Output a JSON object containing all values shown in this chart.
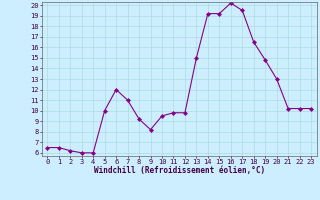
{
  "x": [
    0,
    1,
    2,
    3,
    4,
    5,
    6,
    7,
    8,
    9,
    10,
    11,
    12,
    13,
    14,
    15,
    16,
    17,
    18,
    19,
    20,
    21,
    22,
    23
  ],
  "y": [
    6.5,
    6.5,
    6.2,
    6.0,
    6.0,
    10.0,
    12.0,
    11.0,
    9.2,
    8.2,
    9.5,
    9.8,
    9.8,
    15.0,
    19.2,
    19.2,
    20.2,
    19.5,
    16.5,
    14.8,
    13.0,
    10.2,
    10.2,
    10.2
  ],
  "line_color": "#880088",
  "marker": "D",
  "marker_size": 2,
  "bg_color": "#cceeff",
  "grid_color": "#aadddd",
  "xlabel": "Windchill (Refroidissement éolien,°C)",
  "xlabel_color": "#440044",
  "xlabel_fontsize": 5.5,
  "tick_color": "#440044",
  "tick_fontsize": 5,
  "ylim_min": 6,
  "ylim_max": 20,
  "xlim_min": -0.5,
  "xlim_max": 23.5,
  "yticks": [
    6,
    7,
    8,
    9,
    10,
    11,
    12,
    13,
    14,
    15,
    16,
    17,
    18,
    19,
    20
  ],
  "xticks": [
    0,
    1,
    2,
    3,
    4,
    5,
    6,
    7,
    8,
    9,
    10,
    11,
    12,
    13,
    14,
    15,
    16,
    17,
    18,
    19,
    20,
    21,
    22,
    23
  ]
}
